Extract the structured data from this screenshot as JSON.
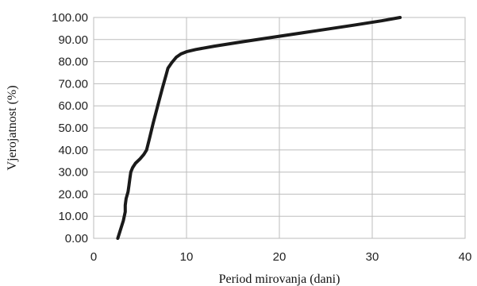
{
  "chart_data": {
    "type": "line",
    "xlabel": "Period mirovanja (dani)",
    "ylabel": "Vjerojatnost (%)",
    "xlim": [
      0,
      40
    ],
    "ylim": [
      0,
      100
    ],
    "x_ticks": [
      0,
      10,
      20,
      30,
      40
    ],
    "y_ticks": [
      "0.00",
      "10.00",
      "20.00",
      "30.00",
      "40.00",
      "50.00",
      "60.00",
      "70.00",
      "80.00",
      "90.00",
      "100.00"
    ],
    "grid": true,
    "series": [
      {
        "color": "#1a1a1a",
        "x": [
          2.6,
          2.9,
          3.2,
          3.4,
          3.4,
          3.5,
          3.7,
          3.8,
          3.9,
          4.0,
          4.2,
          4.5,
          5.0,
          5.4,
          5.7,
          6.0,
          6.4,
          6.9,
          7.4,
          7.8,
          8.0,
          8.4,
          8.9,
          9.4,
          10.0,
          11.0,
          13.0,
          16.0,
          20.0,
          24.0,
          28.0,
          31.0,
          33.0
        ],
        "y": [
          0,
          4,
          8,
          12,
          15,
          18,
          21,
          24,
          27,
          30,
          32,
          34,
          36,
          38,
          40,
          45,
          52,
          60,
          68,
          74,
          77,
          79.5,
          82,
          83.5,
          84.5,
          85.5,
          87,
          89,
          91.5,
          94,
          96.5,
          98.5,
          100
        ]
      }
    ]
  }
}
